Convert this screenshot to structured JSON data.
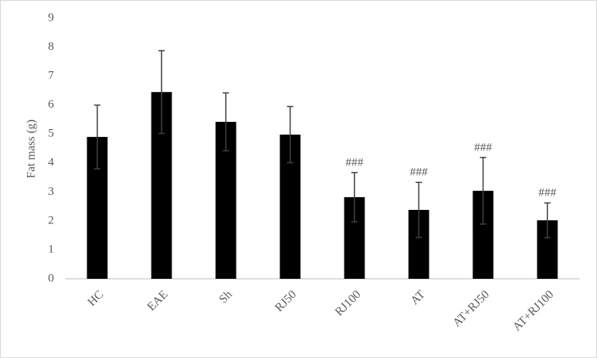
{
  "chart_data": {
    "type": "bar",
    "y_label": "Fat mass (g)",
    "categories": [
      "HC",
      "EAE",
      "Sh",
      "RJ50",
      "RJ100",
      "AT",
      "AT+RJ50",
      "AT+RJ100"
    ],
    "values": [
      4.9,
      6.45,
      5.42,
      4.98,
      2.82,
      2.38,
      3.04,
      2.02
    ],
    "errors": [
      1.1,
      1.43,
      1.0,
      0.97,
      0.85,
      0.95,
      1.15,
      0.6
    ],
    "annotations": [
      null,
      null,
      null,
      null,
      "###",
      "###",
      "###",
      "###"
    ],
    "color": "#000000",
    "ylim": [
      0,
      9
    ],
    "yticks": [
      0,
      1,
      2,
      3,
      4,
      5,
      6,
      7,
      8,
      9
    ]
  }
}
